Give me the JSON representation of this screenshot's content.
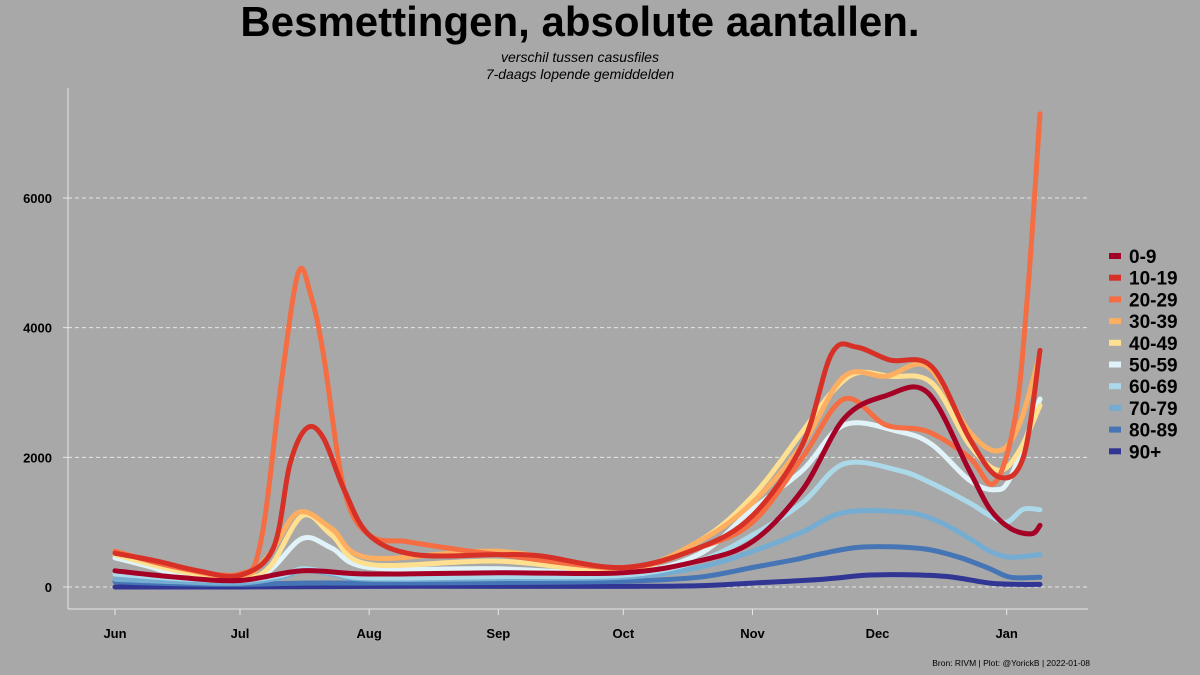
{
  "chart_data": {
    "type": "line",
    "title": "Besmettingen, absolute aantallen.",
    "subtitle_line1": "verschil tussen casusfiles",
    "subtitle_line2": "7-daags lopende gemiddelden",
    "caption": "Bron: RIVM | Plot: @YorickB  |  2022-01-08",
    "xlabel": "",
    "ylabel": "",
    "x_range_days": [
      0,
      222
    ],
    "ylim": [
      -350,
      7650
    ],
    "y_ticks": [
      0,
      2000,
      4000,
      6000
    ],
    "y_tick_labels": [
      "0",
      "2000",
      "4000",
      "6000"
    ],
    "x_ticks": [
      {
        "label": "Jun",
        "day": 0
      },
      {
        "label": "Jul",
        "day": 30
      },
      {
        "label": "Aug",
        "day": 61
      },
      {
        "label": "Sep",
        "day": 92
      },
      {
        "label": "Oct",
        "day": 122
      },
      {
        "label": "Nov",
        "day": 153
      },
      {
        "label": "Dec",
        "day": 183
      },
      {
        "label": "Jan",
        "day": 214
      }
    ],
    "legend_position": "right",
    "series": [
      {
        "name": "90+",
        "color": "#313695",
        "points": [
          [
            0,
            0
          ],
          [
            30,
            0
          ],
          [
            61,
            10
          ],
          [
            92,
            10
          ],
          [
            122,
            10
          ],
          [
            140,
            20
          ],
          [
            153,
            60
          ],
          [
            170,
            120
          ],
          [
            180,
            180
          ],
          [
            190,
            190
          ],
          [
            200,
            160
          ],
          [
            210,
            60
          ],
          [
            217,
            40
          ],
          [
            222,
            40
          ]
        ]
      },
      {
        "name": "80-89",
        "color": "#4575b4",
        "points": [
          [
            0,
            80
          ],
          [
            15,
            50
          ],
          [
            30,
            40
          ],
          [
            45,
            60
          ],
          [
            61,
            60
          ],
          [
            92,
            70
          ],
          [
            122,
            90
          ],
          [
            140,
            150
          ],
          [
            153,
            300
          ],
          [
            163,
            420
          ],
          [
            170,
            520
          ],
          [
            178,
            610
          ],
          [
            186,
            620
          ],
          [
            195,
            580
          ],
          [
            203,
            450
          ],
          [
            210,
            280
          ],
          [
            215,
            150
          ],
          [
            222,
            150
          ]
        ]
      },
      {
        "name": "70-79",
        "color": "#74add1",
        "points": [
          [
            0,
            120
          ],
          [
            15,
            80
          ],
          [
            30,
            60
          ],
          [
            40,
            150
          ],
          [
            45,
            260
          ],
          [
            52,
            200
          ],
          [
            61,
            120
          ],
          [
            92,
            130
          ],
          [
            122,
            150
          ],
          [
            140,
            300
          ],
          [
            153,
            550
          ],
          [
            165,
            850
          ],
          [
            175,
            1150
          ],
          [
            190,
            1150
          ],
          [
            198,
            1000
          ],
          [
            205,
            750
          ],
          [
            210,
            550
          ],
          [
            215,
            460
          ],
          [
            222,
            500
          ]
        ]
      },
      {
        "name": "60-69",
        "color": "#abd9e9",
        "points": [
          [
            0,
            200
          ],
          [
            15,
            130
          ],
          [
            30,
            100
          ],
          [
            40,
            180
          ],
          [
            45,
            280
          ],
          [
            52,
            220
          ],
          [
            61,
            140
          ],
          [
            92,
            160
          ],
          [
            122,
            180
          ],
          [
            140,
            400
          ],
          [
            153,
            800
          ],
          [
            165,
            1300
          ],
          [
            175,
            1900
          ],
          [
            188,
            1800
          ],
          [
            196,
            1600
          ],
          [
            205,
            1300
          ],
          [
            210,
            1100
          ],
          [
            214,
            1000
          ],
          [
            218,
            1200
          ],
          [
            222,
            1190
          ]
        ]
      },
      {
        "name": "50-59",
        "color": "#e0f3f8",
        "points": [
          [
            0,
            450
          ],
          [
            8,
            320
          ],
          [
            15,
            200
          ],
          [
            30,
            120
          ],
          [
            37,
            250
          ],
          [
            45,
            750
          ],
          [
            52,
            600
          ],
          [
            61,
            300
          ],
          [
            92,
            280
          ],
          [
            122,
            220
          ],
          [
            140,
            500
          ],
          [
            153,
            1200
          ],
          [
            165,
            1800
          ],
          [
            175,
            2500
          ],
          [
            188,
            2400
          ],
          [
            196,
            2200
          ],
          [
            205,
            1650
          ],
          [
            211,
            1500
          ],
          [
            215,
            1700
          ],
          [
            222,
            2900
          ]
        ]
      },
      {
        "name": "40-49",
        "color": "#fee090",
        "points": [
          [
            0,
            500
          ],
          [
            15,
            250
          ],
          [
            30,
            140
          ],
          [
            37,
            300
          ],
          [
            45,
            1100
          ],
          [
            52,
            800
          ],
          [
            61,
            350
          ],
          [
            92,
            400
          ],
          [
            122,
            250
          ],
          [
            140,
            700
          ],
          [
            153,
            1400
          ],
          [
            165,
            2400
          ],
          [
            172,
            3000
          ],
          [
            178,
            3300
          ],
          [
            186,
            3250
          ],
          [
            196,
            3150
          ],
          [
            205,
            2200
          ],
          [
            212,
            1800
          ],
          [
            217,
            2100
          ],
          [
            222,
            2800
          ]
        ]
      },
      {
        "name": "30-39",
        "color": "#fdae61",
        "points": [
          [
            0,
            550
          ],
          [
            15,
            300
          ],
          [
            30,
            150
          ],
          [
            37,
            500
          ],
          [
            44,
            1150
          ],
          [
            52,
            900
          ],
          [
            61,
            450
          ],
          [
            92,
            550
          ],
          [
            122,
            280
          ],
          [
            140,
            700
          ],
          [
            153,
            1300
          ],
          [
            165,
            2200
          ],
          [
            175,
            3250
          ],
          [
            185,
            3250
          ],
          [
            195,
            3400
          ],
          [
            205,
            2400
          ],
          [
            212,
            2100
          ],
          [
            217,
            2500
          ],
          [
            222,
            3600
          ]
        ]
      },
      {
        "name": "20-29",
        "color": "#f46d43",
        "points": [
          [
            0,
            550
          ],
          [
            15,
            300
          ],
          [
            30,
            200
          ],
          [
            35,
            700
          ],
          [
            40,
            3200
          ],
          [
            44,
            4850
          ],
          [
            47,
            4500
          ],
          [
            50,
            3600
          ],
          [
            55,
            1500
          ],
          [
            61,
            800
          ],
          [
            70,
            700
          ],
          [
            80,
            600
          ],
          [
            92,
            500
          ],
          [
            122,
            300
          ],
          [
            140,
            600
          ],
          [
            153,
            1000
          ],
          [
            165,
            2000
          ],
          [
            175,
            2900
          ],
          [
            185,
            2500
          ],
          [
            195,
            2400
          ],
          [
            205,
            2000
          ],
          [
            211,
            1600
          ],
          [
            216,
            2600
          ],
          [
            219,
            4500
          ],
          [
            222,
            7300
          ]
        ]
      },
      {
        "name": "10-19",
        "color": "#d73027",
        "points": [
          [
            0,
            520
          ],
          [
            10,
            400
          ],
          [
            20,
            250
          ],
          [
            30,
            180
          ],
          [
            38,
            600
          ],
          [
            42,
            1900
          ],
          [
            46,
            2450
          ],
          [
            50,
            2300
          ],
          [
            55,
            1500
          ],
          [
            61,
            800
          ],
          [
            72,
            500
          ],
          [
            92,
            500
          ],
          [
            102,
            480
          ],
          [
            122,
            300
          ],
          [
            140,
            600
          ],
          [
            153,
            1100
          ],
          [
            165,
            2200
          ],
          [
            172,
            3600
          ],
          [
            178,
            3700
          ],
          [
            186,
            3500
          ],
          [
            196,
            3400
          ],
          [
            205,
            2300
          ],
          [
            212,
            1700
          ],
          [
            218,
            2000
          ],
          [
            222,
            3650
          ]
        ]
      },
      {
        "name": "0-9",
        "color": "#a50026",
        "points": [
          [
            0,
            250
          ],
          [
            15,
            150
          ],
          [
            30,
            100
          ],
          [
            45,
            250
          ],
          [
            61,
            200
          ],
          [
            92,
            220
          ],
          [
            122,
            220
          ],
          [
            140,
            400
          ],
          [
            153,
            700
          ],
          [
            165,
            1500
          ],
          [
            175,
            2600
          ],
          [
            185,
            2950
          ],
          [
            195,
            3000
          ],
          [
            205,
            1800
          ],
          [
            210,
            1200
          ],
          [
            215,
            900
          ],
          [
            220,
            820
          ],
          [
            222,
            950
          ]
        ]
      }
    ]
  }
}
